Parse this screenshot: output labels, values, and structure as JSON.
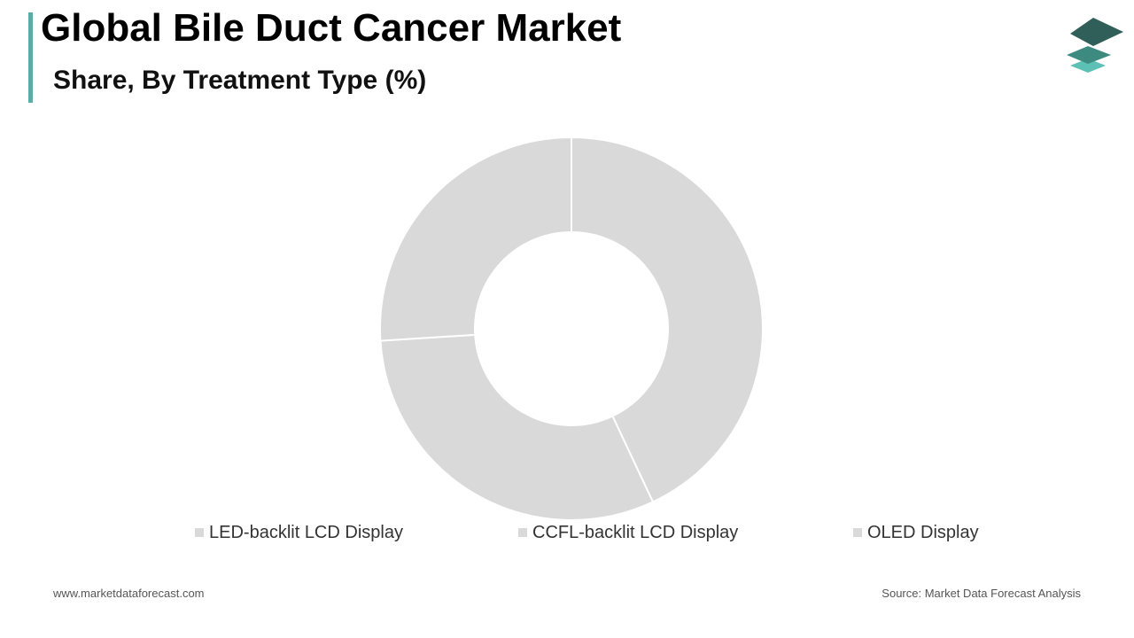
{
  "header": {
    "title": "Global Bile Duct Cancer Market",
    "subtitle": "Share, By Treatment Type (%)"
  },
  "colors": {
    "accent_bar": "#5aaea6",
    "slice_fill": "#d9d9d9",
    "slice_stroke": "#ffffff",
    "logo_top": "#2f5f58",
    "logo_mid": "#3d8a80",
    "logo_bottom": "#5cc0b5"
  },
  "chart_data": {
    "type": "pie",
    "donut": true,
    "title": "Share, By Treatment Type (%)",
    "legend_position": "bottom",
    "categories": [
      "LED-backlit LCD Display",
      "CCFL-backlit LCD Display",
      "OLED Display"
    ],
    "values": [
      43,
      31,
      26
    ],
    "units": "%"
  },
  "footer": {
    "website": "www.marketdataforecast.com",
    "source": "Source: Market Data Forecast Analysis"
  },
  "logo": {
    "icon": "stacked-layers-icon"
  }
}
